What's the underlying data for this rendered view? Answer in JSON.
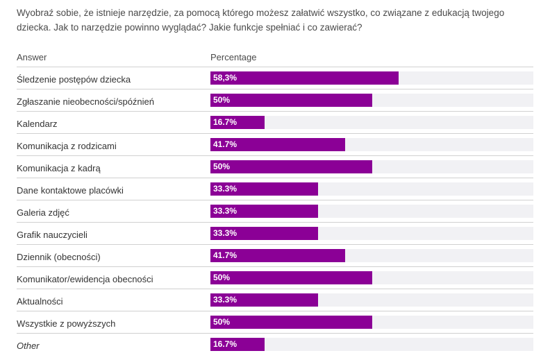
{
  "question": "Wyobraź sobie, że istnieje narzędzie, za pomocą którego możesz załatwić wszystko, co związane z edukacją twojego dziecka. Jak to narzędzie powinno wyglądać? Jakie funkcje spełniać i co zawierać?",
  "headers": {
    "answer": "Answer",
    "percentage": "Percentage"
  },
  "colors": {
    "bar": "#8b0096",
    "track": "#f1f1f4"
  },
  "chart_data": {
    "type": "bar",
    "orientation": "horizontal",
    "xlim": [
      0,
      100
    ],
    "categories": [
      "Śledzenie postępów dziecka",
      "Zgłaszanie nieobecności/spóźnień",
      "Kalendarz",
      "Komunikacja z rodzicami",
      "Komunikacja z kadrą",
      "Dane kontaktowe placówki",
      "Galeria zdjęć",
      "Grafik nauczycieli",
      "Dziennik (obecności)",
      "Komunikator/ewidencja obecności",
      "Aktualności",
      "Wszystkie z powyższych",
      "Other"
    ],
    "values": [
      58.3,
      50,
      16.7,
      41.7,
      50,
      33.3,
      33.3,
      33.3,
      41.7,
      50,
      33.3,
      50,
      16.7
    ],
    "value_labels": [
      "58,3%",
      "50%",
      "16.7%",
      "41.7%",
      "50%",
      "33.3%",
      "33.3%",
      "33.3%",
      "41.7%",
      "50%",
      "33.3%",
      "50%",
      "16.7%"
    ],
    "italic": [
      false,
      false,
      false,
      false,
      false,
      false,
      false,
      false,
      false,
      false,
      false,
      false,
      true
    ]
  }
}
